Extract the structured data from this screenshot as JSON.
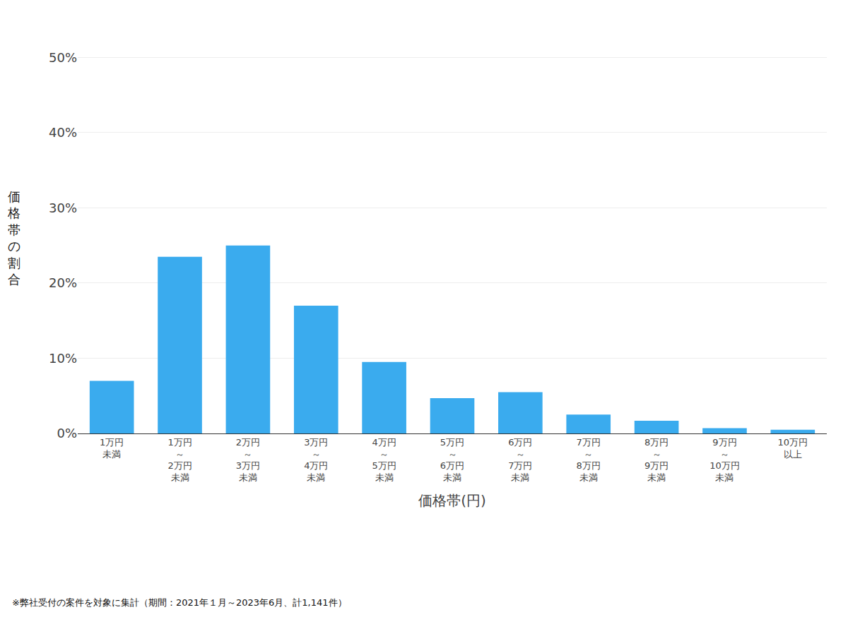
{
  "chart_data": {
    "type": "bar",
    "categories": [
      "1万円\n未満",
      "1万円\n～\n2万円\n未満",
      "2万円\n～\n3万円\n未満",
      "3万円\n～\n4万円\n未満",
      "4万円\n～\n5万円\n未満",
      "5万円\n～\n6万円\n未満",
      "6万円\n～\n7万円\n未満",
      "7万円\n～\n8万円\n未満",
      "8万円\n～\n9万円\n未満",
      "9万円\n～\n10万円\n未満",
      "10万円\n以上"
    ],
    "values": [
      7.0,
      23.5,
      25.0,
      17.0,
      9.5,
      4.7,
      5.5,
      2.5,
      1.7,
      0.7,
      0.5
    ],
    "color": "#3AABEE",
    "xlabel": "価格帯(円)",
    "ylabel": "価格帯の割合",
    "ylim": [
      0,
      52
    ],
    "yticks": [
      {
        "value": 0,
        "label": "0%"
      },
      {
        "value": 10,
        "label": "10%"
      },
      {
        "value": 20,
        "label": "20%"
      },
      {
        "value": 30,
        "label": "30%"
      },
      {
        "value": 40,
        "label": "40%"
      },
      {
        "value": 50,
        "label": "50%"
      }
    ],
    "grid": true,
    "annotations": [
      "※弊社受付の案件を対象に集計（期間：2021年１月～2023年6月、計1,141件）"
    ]
  }
}
